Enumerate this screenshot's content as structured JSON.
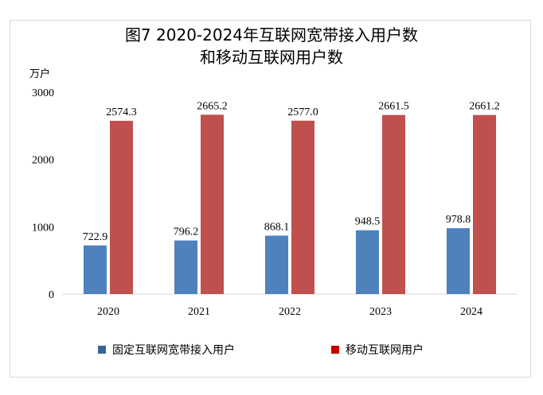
{
  "chart_data": {
    "type": "bar",
    "title": "图7 2020-2024年互联网宽带接入用户数",
    "title_line2": "和移动互联网用户数",
    "ylabel": "万户",
    "ylim": [
      0,
      3000
    ],
    "yticks": [
      "0",
      "1000",
      "2000",
      "3000"
    ],
    "grid": false,
    "legend_position": "bottom",
    "categories": [
      "2020",
      "2021",
      "2022",
      "2023",
      "2024"
    ],
    "series": [
      {
        "name": "固定互联网宽带接入用户",
        "values": [
          722.9,
          796.2,
          868.1,
          948.5,
          978.8
        ],
        "labels": [
          "722.9",
          "796.2",
          "868.1",
          "948.5",
          "978.8"
        ],
        "color": "#4f81bd",
        "legend_color": "#3a6496"
      },
      {
        "name": "移动互联网用户",
        "values": [
          2574.3,
          2665.2,
          2577.0,
          2661.5,
          2661.2
        ],
        "labels": [
          "2574.3",
          "2665.2",
          "2577.0",
          "2661.5",
          "2661.2"
        ],
        "color": "#c0504d",
        "legend_color": "#c00000"
      }
    ]
  }
}
